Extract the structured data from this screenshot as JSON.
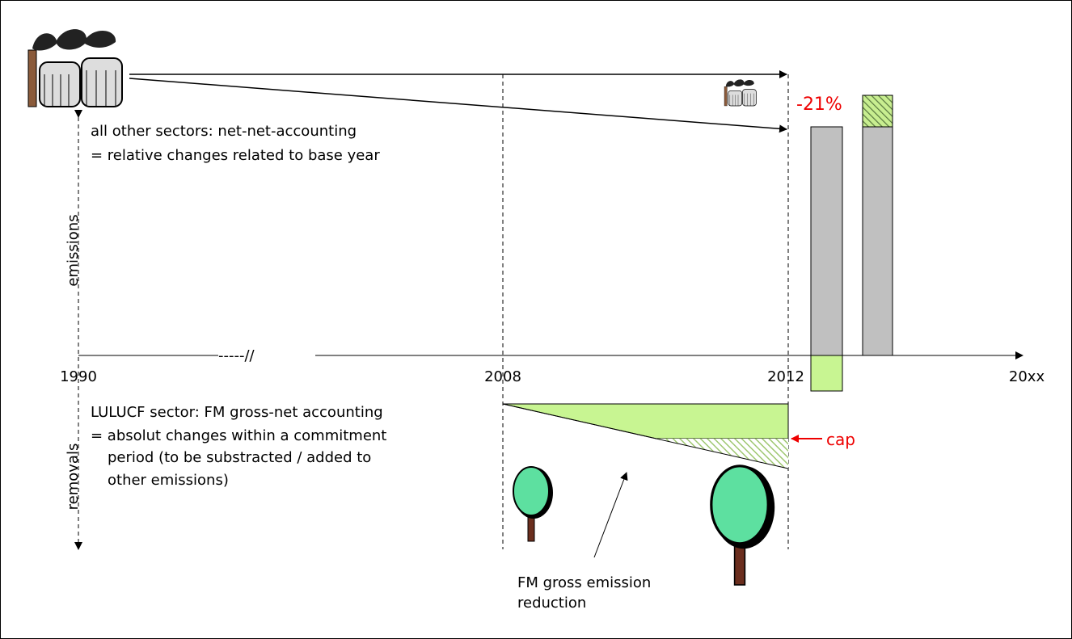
{
  "labels": {
    "emissions": "emissions",
    "removals": "removals",
    "other_sectors": [
      "all other sectors: net-net-accounting",
      "= relative changes related to base year"
    ],
    "lulucf": [
      "LULUCF sector: FM gross-net accounting",
      "= absolut changes within a commitment",
      "period (to be substracted / added to",
      "other emissions)"
    ],
    "reduction_note": [
      "FM gross emission",
      "reduction"
    ],
    "percent_change": "-21%",
    "cap": "cap"
  },
  "axis": {
    "break": "-----//",
    "years": [
      "1990",
      "2008",
      "2012",
      "20xx"
    ]
  }
}
